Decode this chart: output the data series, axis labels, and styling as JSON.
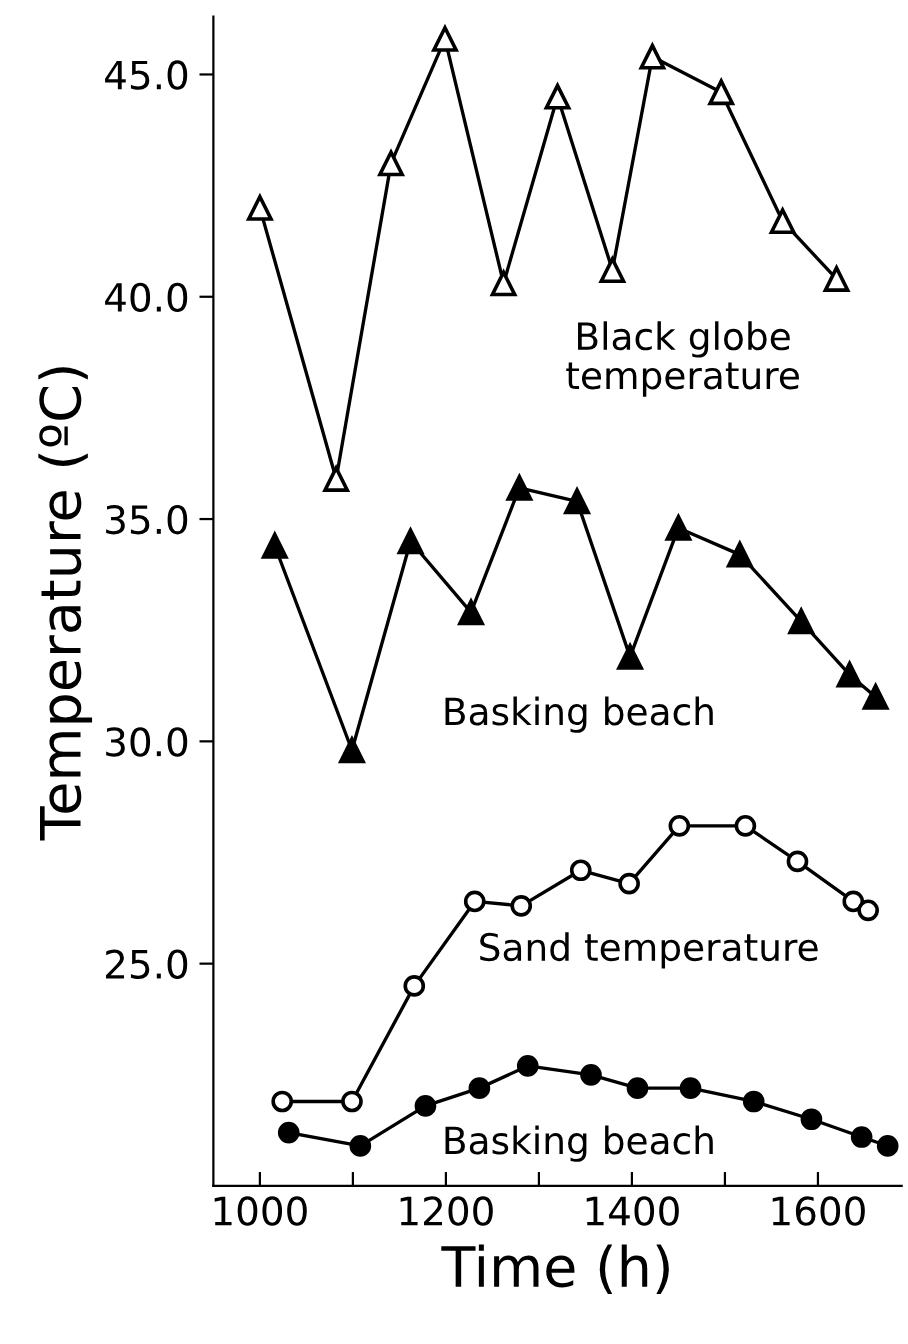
{
  "chart_data": {
    "type": "line",
    "xlabel": "Time (h)",
    "ylabel": "Temperature (ºC)",
    "xlim": [
      950,
      1690
    ],
    "ylim": [
      20.0,
      46.3
    ],
    "xticks": [
      1000,
      {
        "value": 1100,
        "label": null
      },
      1200,
      {
        "value": 1300,
        "label": null
      },
      1400,
      {
        "value": 1500,
        "label": null
      },
      1600
    ],
    "yticks": [
      {
        "value": 25,
        "label": "25.0"
      },
      {
        "value": 30,
        "label": "30.0"
      },
      {
        "value": 35,
        "label": "35.0"
      },
      {
        "value": 40,
        "label": "40.0"
      },
      {
        "value": 45,
        "label": "45.0"
      }
    ],
    "grid": false,
    "legend": false,
    "line_style": "solid",
    "series": [
      {
        "name": "Black globe temperature",
        "color": "#000000",
        "marker": "triangle",
        "x": [
          1000,
          1082,
          1141,
          1199,
          1262,
          1320,
          1379,
          1422,
          1496,
          1562,
          1620
        ],
        "values": [
          42.0,
          35.9,
          43.0,
          45.8,
          40.3,
          44.5,
          40.6,
          45.4,
          44.6,
          41.7,
          40.4
        ]
      },
      {
        "name": "Basking beach",
        "color": "#000000",
        "marker": "triangle",
        "x": [
          1016,
          1099,
          1162,
          1227,
          1279,
          1341,
          1398,
          1450,
          1516,
          1582,
          1634,
          1662
        ],
        "values": [
          34.4,
          29.8,
          34.5,
          32.9,
          35.7,
          35.4,
          31.9,
          34.8,
          34.2,
          32.7,
          31.5,
          31.0
        ]
      },
      {
        "name": "Sand temperature",
        "color": "#000000",
        "marker": "circle",
        "x": [
          1024,
          1099,
          1166,
          1231,
          1281,
          1345,
          1397,
          1451,
          1522,
          1578,
          1638,
          1654
        ],
        "values": [
          21.9,
          21.9,
          24.5,
          26.4,
          26.3,
          27.1,
          26.8,
          28.1,
          28.1,
          27.3,
          26.4,
          26.2
        ]
      },
      {
        "name": "Basking beach",
        "color": "#000000",
        "marker": "circle",
        "x": [
          1031,
          1108,
          1178,
          1236,
          1288,
          1356,
          1406,
          1463,
          1531,
          1593,
          1647,
          1675
        ],
        "values": [
          21.2,
          20.9,
          21.8,
          22.2,
          22.7,
          22.5,
          22.2,
          22.2,
          21.9,
          21.5,
          21.1,
          20.9
        ]
      }
    ]
  }
}
